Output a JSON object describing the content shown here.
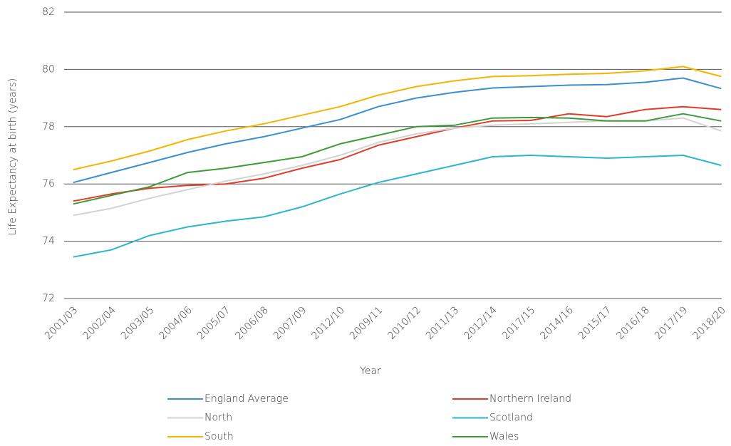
{
  "chart_data": {
    "type": "line",
    "y_label": "Life Expectancy at birth (years)",
    "x_label": "Year",
    "categories": [
      "2001/03",
      "2002/04",
      "2003/05",
      "2004/06",
      "2005/07",
      "2006/08",
      "2007/09",
      "2012/10",
      "2009/11",
      "2010/12",
      "2011/13",
      "2012/14",
      "2017/15",
      "2014/16",
      "2015/17",
      "2016/18",
      "2017/19",
      "2018/20"
    ],
    "series": [
      {
        "name": "England Average",
        "color": "#3a8fce",
        "values": [
          76.05,
          76.4,
          76.75,
          77.1,
          77.4,
          77.65,
          77.95,
          78.25,
          78.7,
          79.0,
          79.2,
          79.35,
          79.4,
          79.45,
          79.47,
          79.55,
          79.7,
          79.33
        ]
      },
      {
        "name": "Northern Ireland",
        "color": "#e03c2a",
        "values": [
          75.4,
          75.65,
          75.85,
          75.95,
          76.0,
          76.2,
          76.55,
          76.85,
          77.35,
          77.65,
          77.95,
          78.2,
          78.22,
          78.45,
          78.35,
          78.6,
          78.7,
          78.6
        ]
      },
      {
        "name": "North",
        "color": "#d3d3d3",
        "values": [
          74.9,
          75.15,
          75.5,
          75.8,
          76.1,
          76.35,
          76.65,
          77.0,
          77.45,
          77.75,
          77.95,
          78.05,
          78.1,
          78.15,
          78.2,
          78.2,
          78.3,
          77.85
        ]
      },
      {
        "name": "Scotland",
        "color": "#2bb5cf",
        "values": [
          73.45,
          73.7,
          74.2,
          74.5,
          74.7,
          74.85,
          75.2,
          75.65,
          76.05,
          76.35,
          76.65,
          76.95,
          77.0,
          76.95,
          76.9,
          76.95,
          77.0,
          76.65
        ]
      },
      {
        "name": "South",
        "color": "#f4b400",
        "values": [
          76.5,
          76.8,
          77.15,
          77.55,
          77.85,
          78.1,
          78.4,
          78.7,
          79.1,
          79.4,
          79.6,
          79.75,
          79.78,
          79.83,
          79.86,
          79.95,
          80.1,
          79.75
        ]
      },
      {
        "name": "Wales",
        "color": "#3e9a3a",
        "values": [
          75.3,
          75.6,
          75.9,
          76.4,
          76.55,
          76.75,
          76.95,
          77.4,
          77.7,
          78.0,
          78.05,
          78.3,
          78.32,
          78.3,
          78.2,
          78.2,
          78.45,
          78.2
        ]
      }
    ],
    "ylim": [
      72,
      82
    ],
    "yticks": [
      72,
      74,
      76,
      78,
      80,
      82
    ],
    "grid": true
  }
}
